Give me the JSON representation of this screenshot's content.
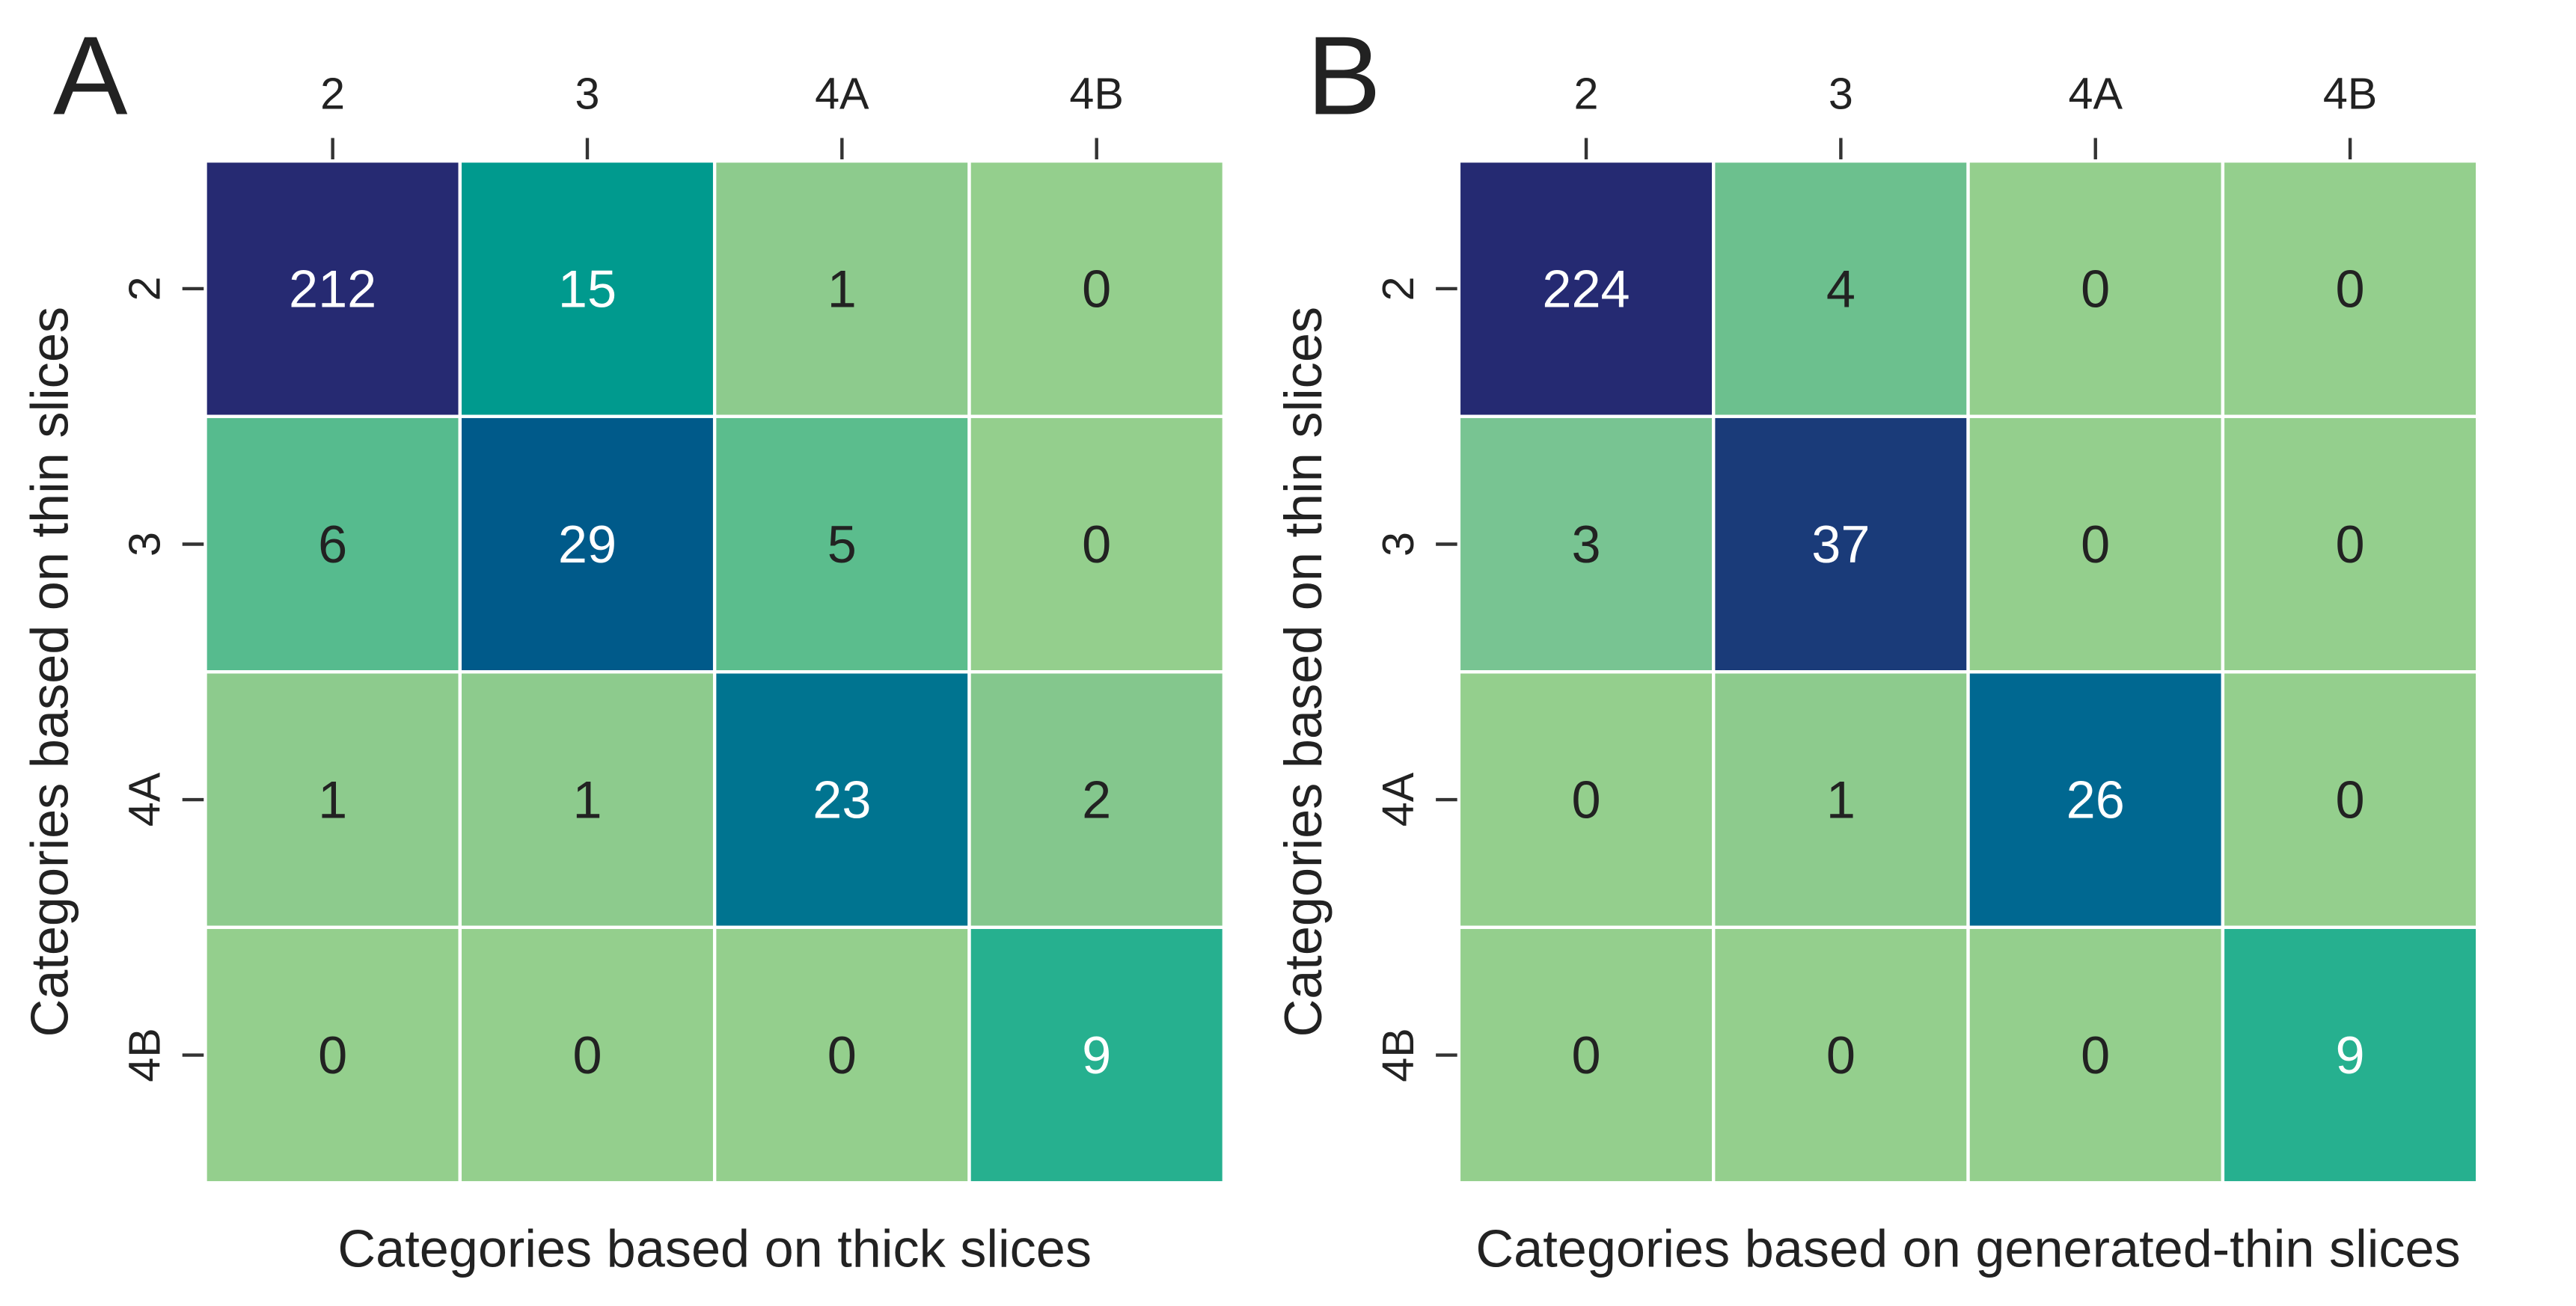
{
  "chart_data": [
    {
      "type": "heatmap",
      "label": "A",
      "xlabel": "Categories based on thick slices",
      "ylabel": "Categories based on thin slices",
      "x_categories": [
        "2",
        "3",
        "4A",
        "4B"
      ],
      "y_categories": [
        "2",
        "3",
        "4A",
        "4B"
      ],
      "values": [
        [
          212,
          15,
          1,
          0
        ],
        [
          6,
          29,
          5,
          0
        ],
        [
          1,
          1,
          23,
          2
        ],
        [
          0,
          0,
          0,
          9
        ]
      ],
      "colors": [
        [
          "#262a72",
          "#009a8e",
          "#8dcb8d",
          "#94cf8d"
        ],
        [
          "#56bb8e",
          "#005a8a",
          "#5bbd8d",
          "#94cf8d"
        ],
        [
          "#8dcb8d",
          "#8dcb8d",
          "#007490",
          "#84c78d"
        ],
        [
          "#94cf8d",
          "#94cf8d",
          "#94cf8d",
          "#26b08f"
        ]
      ]
    },
    {
      "type": "heatmap",
      "label": "B",
      "xlabel": "Categories based on generated-thin slices",
      "ylabel": "Categories based on thin slices",
      "x_categories": [
        "2",
        "3",
        "4A",
        "4B"
      ],
      "y_categories": [
        "2",
        "3",
        "4A",
        "4B"
      ],
      "values": [
        [
          224,
          4,
          0,
          0
        ],
        [
          3,
          37,
          0,
          0
        ],
        [
          0,
          1,
          26,
          0
        ],
        [
          0,
          0,
          0,
          9
        ]
      ],
      "colors": [
        [
          "#252a72",
          "#6cc08e",
          "#94cf8d",
          "#94cf8d"
        ],
        [
          "#78c492",
          "#1a3b79",
          "#94cf8d",
          "#94cf8d"
        ],
        [
          "#94cf8d",
          "#8dcb8d",
          "#006891",
          "#94cf8d"
        ],
        [
          "#94cf8d",
          "#94cf8d",
          "#94cf8d",
          "#26b08f"
        ]
      ]
    }
  ]
}
